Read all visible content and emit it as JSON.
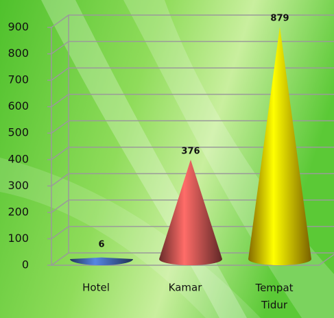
{
  "chart_data": {
    "type": "cone",
    "categories": [
      "Hotel",
      "Kamar",
      "Tempat Tidur"
    ],
    "values": [
      6,
      376,
      879
    ],
    "colors": [
      "#3f63a8",
      "#c0504d",
      "#f2c200"
    ],
    "ylim": [
      0,
      900
    ],
    "yticks": [
      0,
      100,
      200,
      300,
      400,
      500,
      600,
      700,
      800,
      900
    ],
    "grid": true
  }
}
